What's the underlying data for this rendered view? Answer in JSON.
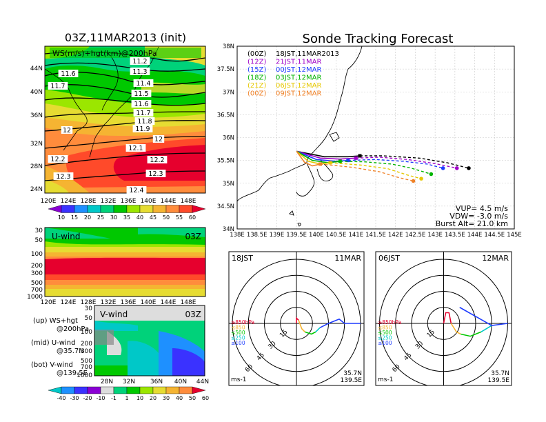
{
  "colors": {
    "ws_scale": [
      "#8a00d4",
      "#3a32ff",
      "#1e90ff",
      "#00c8c8",
      "#00d27a",
      "#00c800",
      "#9be600",
      "#e6dc32",
      "#f5b432",
      "#ff8c3c",
      "#ff4a2a",
      "#e6002d"
    ],
    "v_scale": [
      "#00c8c8",
      "#1e90ff",
      "#3a32ff",
      "#8a00d4",
      "#dddddd",
      "#00d27a",
      "#00c800",
      "#9be600",
      "#e6dc32",
      "#f5b432",
      "#ff8c3c",
      "#e6002d"
    ],
    "tracks": {
      "00Z_a": "#000000",
      "12Z_a": "#a000c8",
      "15Z": "#1e3cff",
      "18Z": "#00b400",
      "21Z": "#e6c800",
      "00Z_b": "#f08228"
    }
  },
  "left": {
    "title": "03Z,11MAR2013 (init)",
    "map_label": "WS(m/s)+hgt(km)@200hPa",
    "lat_labels": [
      "44N",
      "40N",
      "36N",
      "32N",
      "28N",
      "24N"
    ],
    "lon_labels": [
      "120E",
      "124E",
      "128E",
      "132E",
      "136E",
      "140E",
      "144E",
      "148E"
    ],
    "contour_labels": [
      "11.2",
      "11.3",
      "11.4",
      "11.5",
      "11.6",
      "11.6",
      "11.7",
      "11.7",
      "11.8",
      "11.9",
      "12",
      "12",
      "12.1",
      "12.2",
      "12.2",
      "12.3",
      "12.3",
      "12.4"
    ],
    "ws_colorbar": [
      "10",
      "15",
      "20",
      "25",
      "30",
      "35",
      "40",
      "45",
      "50",
      "55",
      "60"
    ],
    "u_title": "U-wind",
    "u_time": "03Z",
    "p_labels": [
      "30",
      "50",
      "100",
      "200",
      "300",
      "500",
      "700",
      "1000"
    ],
    "v_title": "V-wind",
    "v_time": "03Z",
    "v_lat_labels": [
      "28N",
      "32N",
      "36N",
      "40N",
      "44N"
    ],
    "v_colorbar": [
      "-40",
      "-30",
      "-20",
      "-10",
      "-1",
      "1",
      "10",
      "20",
      "30",
      "40",
      "50",
      "60"
    ],
    "legend": {
      "up1": "(up) WS+hgt",
      "up2": "@200hPa",
      "mid1": "(mid) U-wind",
      "mid2": "@35.7N",
      "bot1": "(bot) V-wind",
      "bot2": "@139.5E"
    }
  },
  "right": {
    "title": "Sonde Tracking Forecast",
    "track_legend": [
      {
        "z": "(00Z)",
        "jst": "18JST,11MAR2013"
      },
      {
        "z": "(12Z)",
        "jst": "21JST,11MAR"
      },
      {
        "z": "(15Z)",
        "jst": "00JST,12MAR"
      },
      {
        "z": "(18Z)",
        "jst": "03JST,12MAR"
      },
      {
        "z": "(21Z)",
        "jst": "06JST,12MAR"
      },
      {
        "z": "(00Z)",
        "jst": "09JST,12MAR"
      }
    ],
    "lat_labels": [
      "38N",
      "37.5N",
      "37N",
      "36.5N",
      "36N",
      "35.5N",
      "35N",
      "34.5N",
      "34N"
    ],
    "lon_labels": [
      "138E",
      "138.5E",
      "139E",
      "139.5E",
      "140E",
      "140.5E",
      "141E",
      "141.5E",
      "142E",
      "142.5E",
      "143E",
      "143.5E",
      "144E",
      "144.5E",
      "145E"
    ],
    "params": {
      "vup": "VUP= 4.5 m/s",
      "vdw": "VDW= -3.0 m/s",
      "burst": "Burst Alt= 21.0 km"
    }
  },
  "hodo": [
    {
      "left": "18JST",
      "right": "11MAR",
      "loc1": "35.7N",
      "loc2": "139.5E",
      "unit": "ms-1",
      "rings": [
        "15",
        "30",
        "45",
        "60"
      ],
      "levels": [
        "≥850hPa",
        "≤850",
        "≤500",
        "≤250",
        "≤100"
      ]
    },
    {
      "left": "06JST",
      "right": "12MAR",
      "loc1": "35.7N",
      "loc2": "139.5E",
      "unit": "ms-1",
      "rings": [
        "15",
        "30",
        "45",
        "60"
      ],
      "levels": [
        "≥850hPa",
        "≤850",
        "≤500",
        "≤250",
        "≤100"
      ]
    }
  ],
  "chart_data": [
    {
      "type": "heatmap",
      "title": "03Z,11MAR2013 (init)",
      "label": "WS(m/s)+hgt(km)@200hPa",
      "x_range": [
        "120E",
        "149E"
      ],
      "y_range": [
        "22N",
        "47N"
      ],
      "contour_labels": [
        11.2,
        11.3,
        11.4,
        11.5,
        11.6,
        11.7,
        11.8,
        11.9,
        12,
        12.1,
        12.2,
        12.3,
        12.4
      ],
      "colorbar": [
        10,
        15,
        20,
        25,
        30,
        35,
        40,
        45,
        50,
        55,
        60
      ]
    },
    {
      "type": "heatmap",
      "title": "U-wind",
      "time": "03Z",
      "x_range": [
        "120E",
        "149E"
      ],
      "y_levels_hPa": [
        30,
        50,
        100,
        200,
        300,
        500,
        700,
        1000
      ]
    },
    {
      "type": "heatmap",
      "title": "V-wind",
      "time": "03Z",
      "x_range": [
        "28N",
        "44N"
      ],
      "y_levels_hPa": [
        30,
        50,
        100,
        200,
        300,
        500,
        700,
        1000
      ],
      "colorbar": [
        -40,
        -30,
        -20,
        -10,
        -1,
        1,
        10,
        20,
        30,
        40,
        50,
        60
      ]
    },
    {
      "type": "line",
      "title": "Sonde Tracking Forecast",
      "xlim": [
        138,
        145
      ],
      "ylim": [
        34,
        38
      ],
      "release": {
        "lon": 139.5,
        "lat": 35.7
      },
      "series": [
        {
          "name": "(00Z) 18JST,11MAR2013",
          "lon": [
            139.5,
            140.2,
            140.8,
            141.1,
            141.7,
            142.6,
            143.3,
            143.85
          ],
          "lat": [
            35.7,
            35.58,
            35.58,
            35.6,
            35.6,
            35.55,
            35.45,
            35.33
          ]
        },
        {
          "name": "(12Z) 21JST,11MAR",
          "lon": [
            139.5,
            140.1,
            140.6,
            141.0,
            141.6,
            142.3,
            143.0,
            143.55
          ],
          "lat": [
            35.7,
            35.55,
            35.53,
            35.55,
            35.57,
            35.52,
            35.43,
            35.33
          ]
        },
        {
          "name": "(15Z) 00JST,12MAR",
          "lon": [
            139.5,
            140.0,
            140.5,
            140.8,
            141.5,
            142.2,
            142.8,
            143.2
          ],
          "lat": [
            35.7,
            35.52,
            35.48,
            35.5,
            35.52,
            35.48,
            35.42,
            35.33
          ]
        },
        {
          "name": "(18Z) 03JST,12MAR",
          "lon": [
            139.5,
            139.9,
            140.3,
            140.6,
            141.2,
            141.9,
            142.4,
            142.9
          ],
          "lat": [
            35.7,
            35.5,
            35.45,
            35.48,
            35.47,
            35.42,
            35.33,
            35.2
          ]
        },
        {
          "name": "(21Z) 06JST,12MAR",
          "lon": [
            139.5,
            139.8,
            140.1,
            140.35,
            141.1,
            141.8,
            142.3,
            142.65
          ],
          "lat": [
            35.7,
            35.48,
            35.42,
            35.45,
            35.4,
            35.32,
            35.18,
            35.1
          ]
        },
        {
          "name": "(00Z) 09JST,12MAR",
          "lon": [
            139.5,
            139.7,
            139.9,
            140.1,
            140.9,
            141.6,
            142.1,
            142.45
          ],
          "lat": [
            35.7,
            35.46,
            35.38,
            35.42,
            35.35,
            35.25,
            35.12,
            35.05
          ]
        }
      ],
      "params": {
        "VUP_m_s": 4.5,
        "VDW_m_s": -3.0,
        "burst_alt_km": 21.0
      }
    },
    {
      "type": "scatter",
      "title": "18JST 11MAR",
      "location": "35.7N 139.5E",
      "rings_ms": [
        15,
        30,
        45,
        60
      ],
      "segments": [
        {
          "level": "≥850hPa",
          "u": [
            0,
            0,
            2
          ],
          "v": [
            0,
            5,
            3
          ]
        },
        {
          "level": "≤850",
          "u": [
            2,
            5,
            8
          ],
          "v": [
            3,
            -5,
            -8
          ]
        },
        {
          "level": "≤500",
          "u": [
            8,
            14,
            18
          ],
          "v": [
            -8,
            -10,
            -8
          ]
        },
        {
          "level": "≤250",
          "u": [
            18,
            22
          ],
          "v": [
            -8,
            -4
          ]
        },
        {
          "level": "≤100",
          "u": [
            22,
            30,
            40,
            45,
            60
          ],
          "v": [
            -4,
            0,
            4,
            0,
            0
          ]
        }
      ]
    },
    {
      "type": "scatter",
      "title": "06JST 12MAR",
      "location": "35.7N 139.5E",
      "rings_ms": [
        15,
        30,
        45,
        60
      ],
      "segments": [
        {
          "level": "≥850hPa",
          "u": [
            0,
            2,
            5,
            7
          ],
          "v": [
            0,
            10,
            10,
            0
          ]
        },
        {
          "level": "≤850",
          "u": [
            7,
            12,
            16
          ],
          "v": [
            0,
            -8,
            -10
          ]
        },
        {
          "level": "≤500",
          "u": [
            16,
            25,
            35
          ],
          "v": [
            -10,
            -12,
            -8
          ]
        },
        {
          "level": "≤250",
          "u": [
            35,
            45
          ],
          "v": [
            -8,
            -2
          ]
        },
        {
          "level": "≤100",
          "u": [
            15,
            45,
            60
          ],
          "v": [
            15,
            -2,
            0
          ]
        }
      ]
    }
  ]
}
